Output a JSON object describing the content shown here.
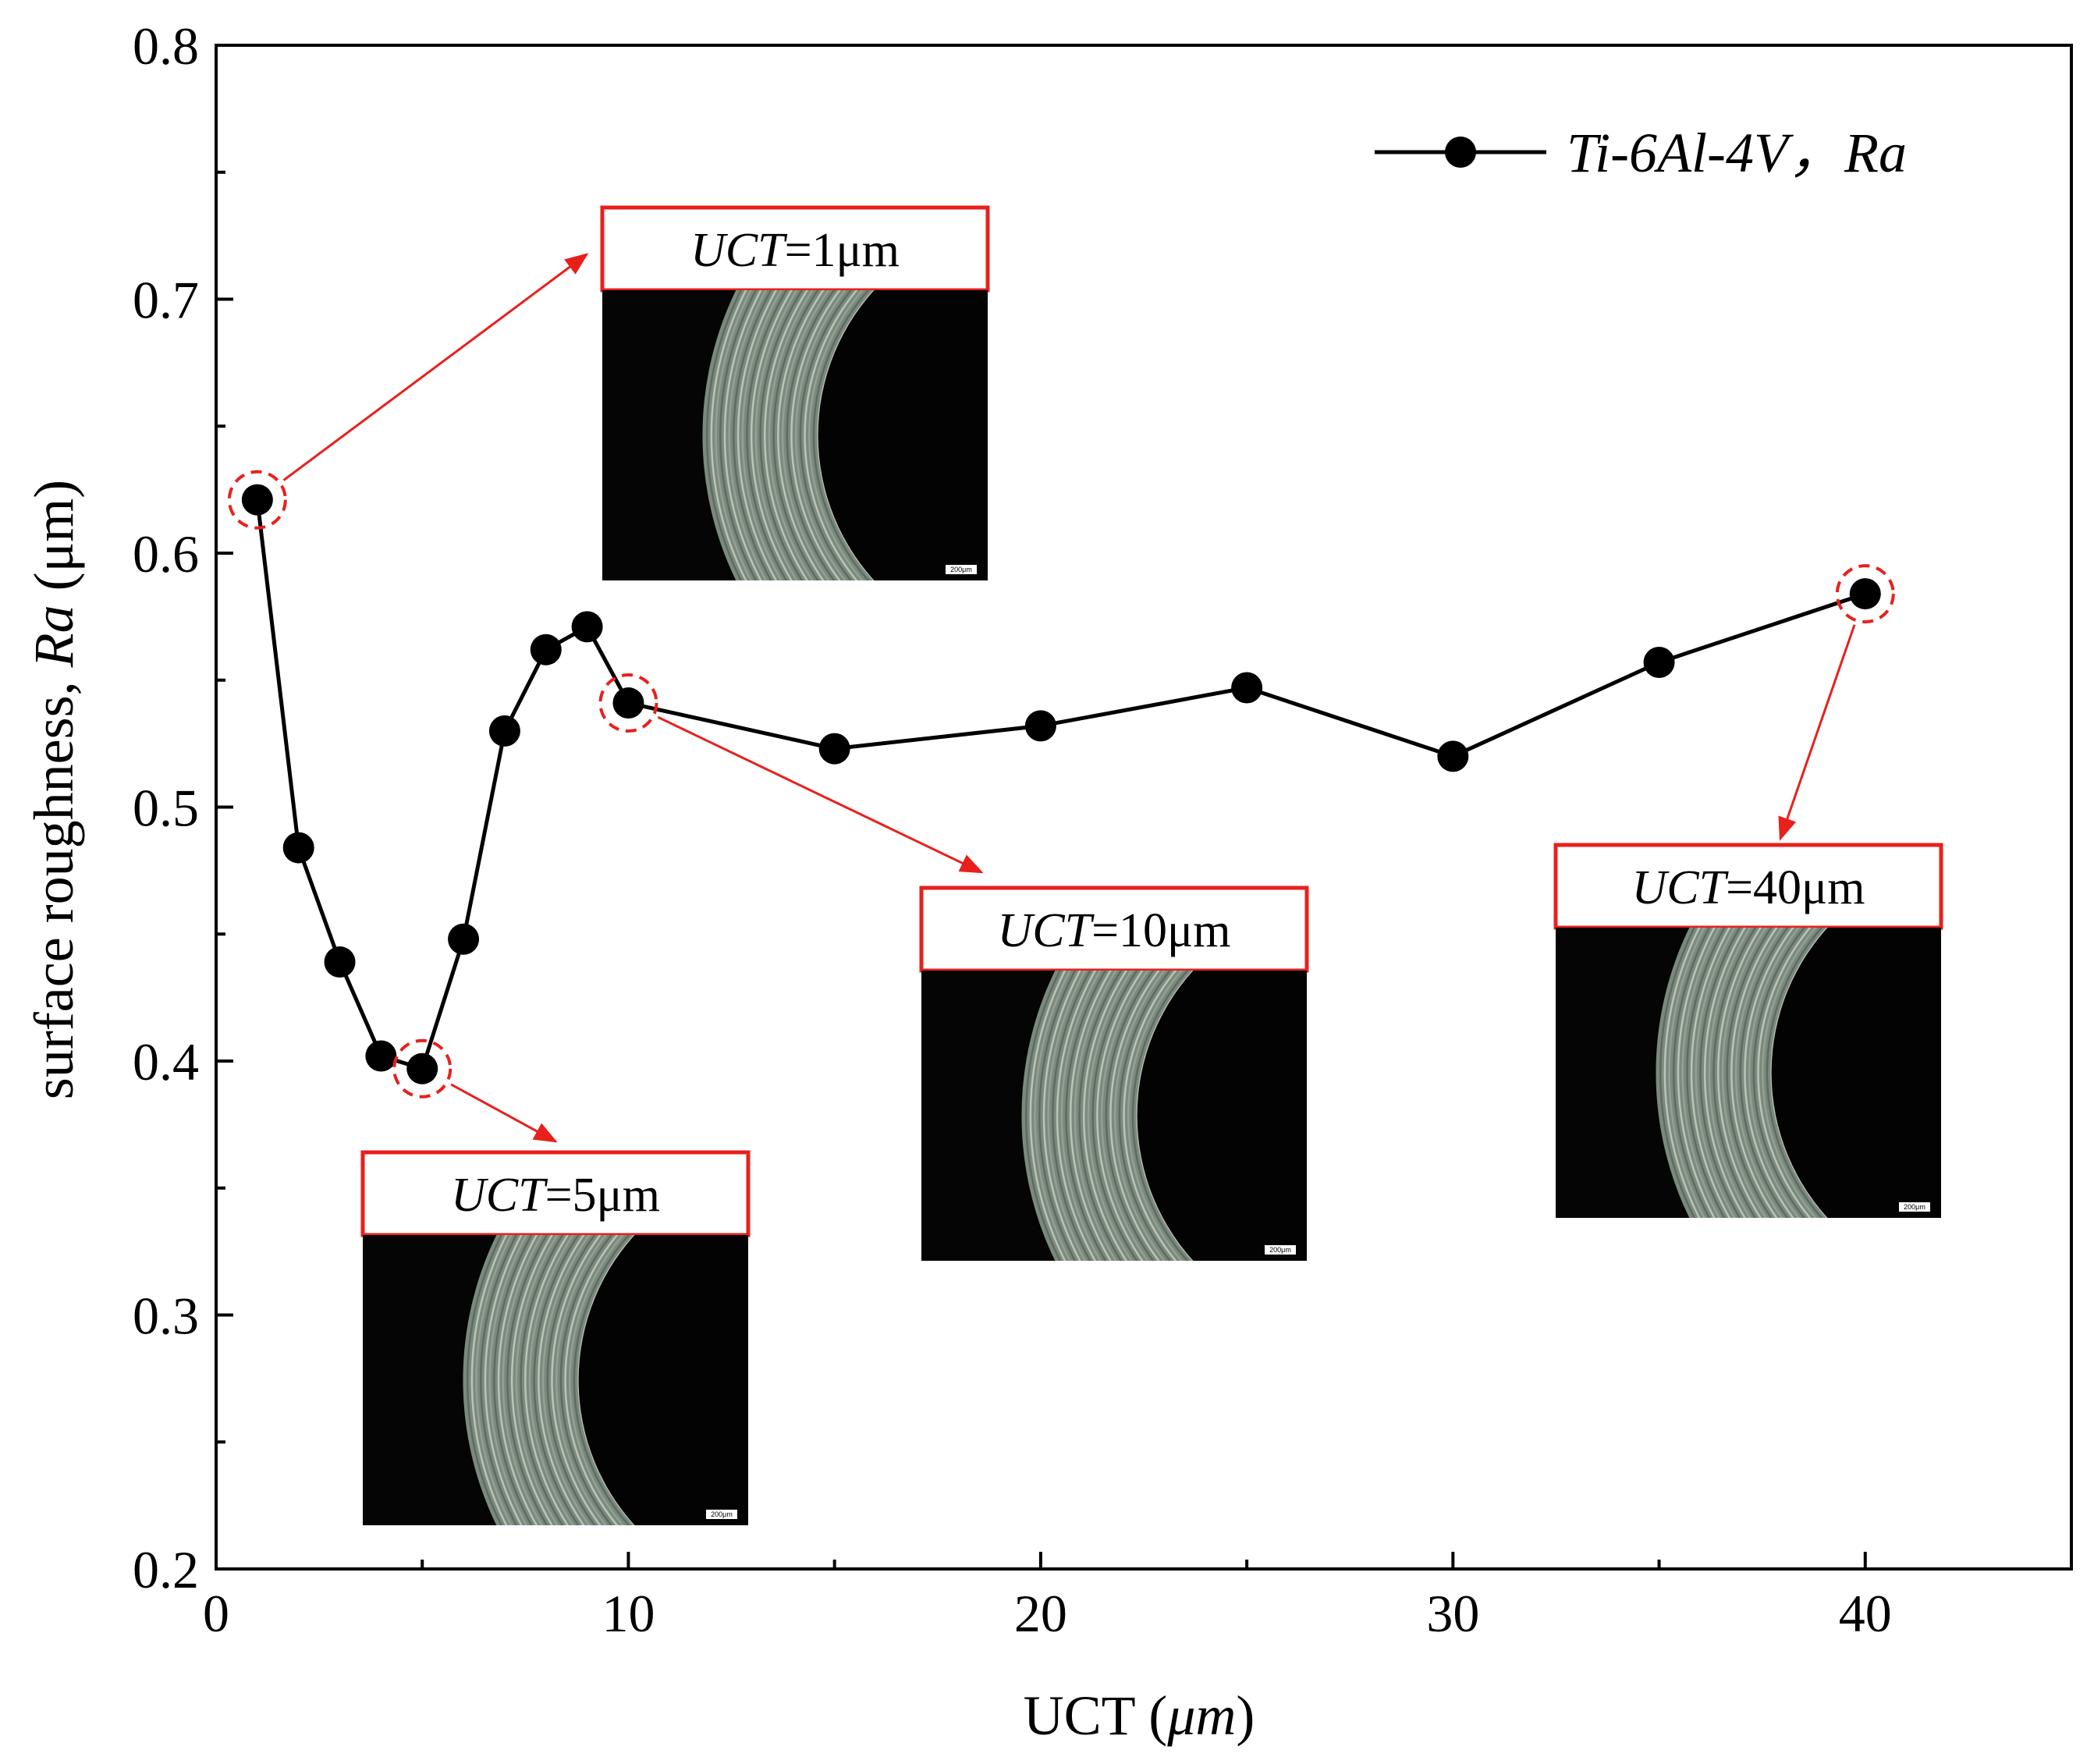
{
  "chart_data": {
    "type": "line",
    "ylabel_prefix": "surface roughness,  ",
    "ylabel_var": "Ra",
    "ylabel_unit": " (μm)",
    "xlabel_prefix": "UCT (",
    "xlabel_unit": "μm",
    "xlabel_suffix": ")",
    "xlim": [
      0,
      45
    ],
    "ylim": [
      0.2,
      0.8
    ],
    "x_ticks": [
      0,
      10,
      20,
      30,
      40
    ],
    "x_tick_labels": [
      "0",
      "10",
      "20",
      "30",
      "40"
    ],
    "y_ticks": [
      0.2,
      0.3,
      0.4,
      0.5,
      0.6,
      0.7,
      0.8
    ],
    "y_tick_labels": [
      "0.2",
      "0.3",
      "0.4",
      "0.5",
      "0.6",
      "0.7",
      "0.8"
    ],
    "legend_position": "top-right",
    "series": [
      {
        "name": "Ti-6Al-4V，Ra",
        "color": "#000000",
        "x": [
          1,
          2,
          3,
          4,
          5,
          6,
          7,
          8,
          9,
          10,
          15,
          20,
          25,
          30,
          35,
          40
        ],
        "y": [
          0.621,
          0.484,
          0.439,
          0.402,
          0.397,
          0.448,
          0.53,
          0.562,
          0.571,
          0.541,
          0.523,
          0.532,
          0.547,
          0.52,
          0.557,
          0.584
        ]
      }
    ],
    "highlighted_x": [
      1,
      5,
      10,
      40
    ],
    "annotation_color": "#e8201c",
    "annotations": [
      {
        "x": 1,
        "var": "UCT",
        "rest": "=1μm",
        "scale_bar": "200μm"
      },
      {
        "x": 5,
        "var": "UCT",
        "rest": "=5μm",
        "scale_bar": "200μm"
      },
      {
        "x": 10,
        "var": "UCT",
        "rest": "=10μm",
        "scale_bar": "200μm"
      },
      {
        "x": 40,
        "var": "UCT",
        "rest": "=40μm",
        "scale_bar": "200μm"
      }
    ]
  }
}
